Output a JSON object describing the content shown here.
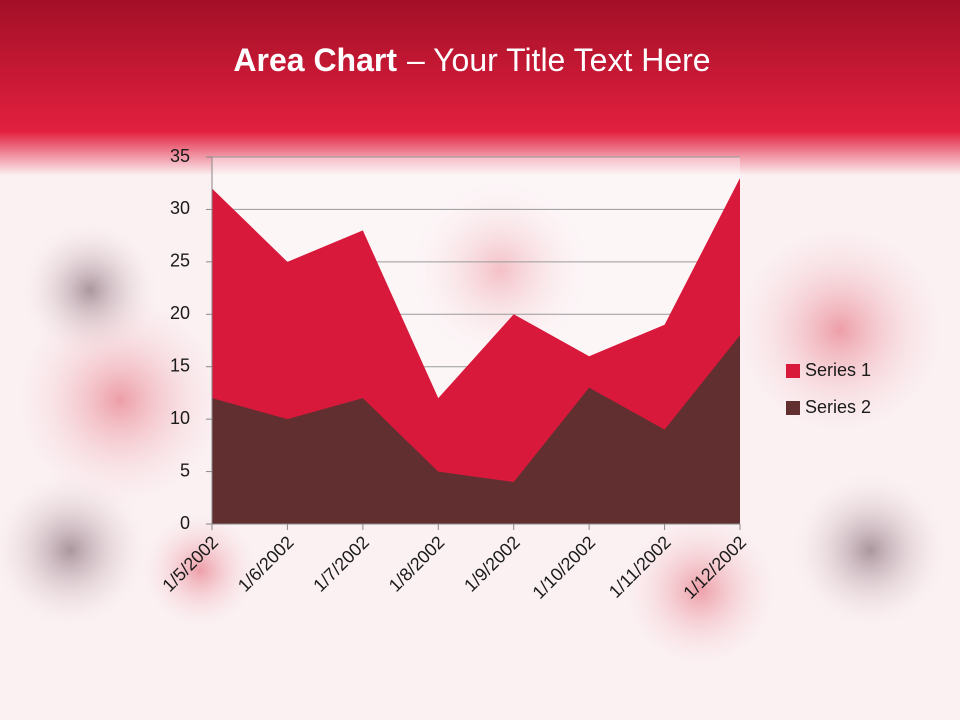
{
  "chart_data": {
    "type": "area",
    "title_emphasis": "Area Chart",
    "title": "– Your Title Text Here",
    "categories": [
      "1/5/2002",
      "1/6/2002",
      "1/7/2002",
      "1/8/2002",
      "1/9/2002",
      "1/10/2002",
      "1/11/2002",
      "1/12/2002"
    ],
    "series": [
      {
        "name": "Series 1",
        "color": "#d8193b",
        "values": [
          32,
          25,
          28,
          12,
          20,
          16,
          19,
          33
        ]
      },
      {
        "name": "Series 2",
        "color": "#622f30",
        "values": [
          12,
          10,
          12,
          5,
          4,
          13,
          9,
          18
        ]
      }
    ],
    "ylim": [
      0,
      35
    ],
    "yticks": [
      0,
      5,
      10,
      15,
      20,
      25,
      30,
      35
    ],
    "grid": true,
    "legend": "right"
  }
}
